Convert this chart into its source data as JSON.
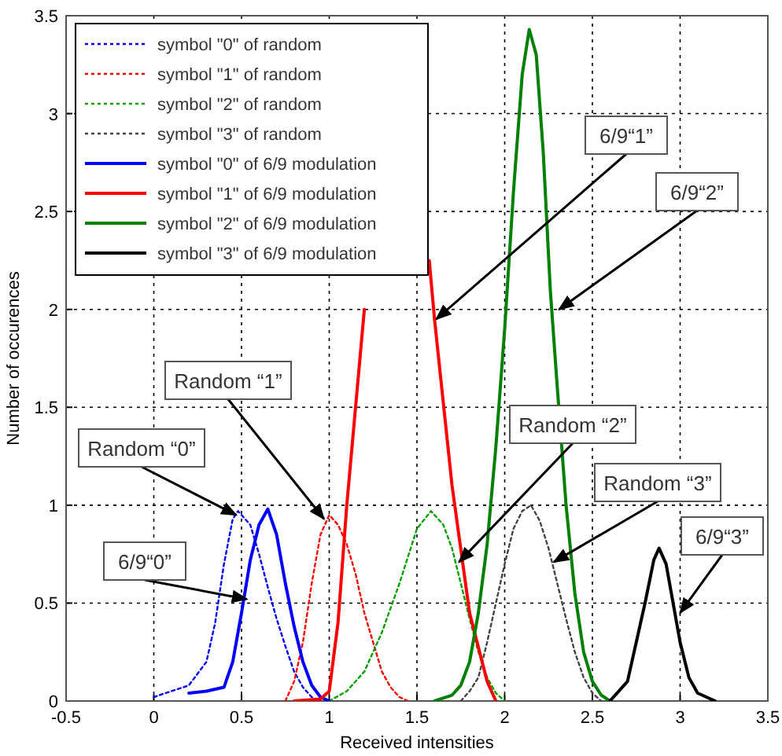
{
  "chart_data": {
    "type": "line",
    "xlabel": "Received intensities",
    "ylabel": "Number of occurences",
    "xlim": [
      -0.5,
      3.5
    ],
    "ylim": [
      0,
      3.5
    ],
    "xticks": [
      -0.5,
      0,
      0.5,
      1,
      1.5,
      2,
      2.5,
      3,
      3.5
    ],
    "yticks": [
      0,
      0.5,
      1,
      1.5,
      2,
      2.5,
      3,
      3.5
    ],
    "grid": true,
    "legend": "top left",
    "marker": "none",
    "series": [
      {
        "name": "symbol \"0\" of random",
        "color": "#0000ff",
        "line_style": "dotted",
        "x": [
          0,
          0.1,
          0.2,
          0.3,
          0.35,
          0.4,
          0.45,
          0.48,
          0.55,
          0.6,
          0.65,
          0.7,
          0.75,
          0.8,
          0.85,
          0.9,
          0.95
        ],
        "values": [
          0.02,
          0.05,
          0.08,
          0.2,
          0.4,
          0.7,
          0.93,
          0.97,
          0.9,
          0.75,
          0.58,
          0.42,
          0.28,
          0.15,
          0.07,
          0.02,
          0
        ]
      },
      {
        "name": "symbol \"1\" of random",
        "color": "#ff0000",
        "line_style": "dotted",
        "x": [
          0.75,
          0.8,
          0.85,
          0.9,
          0.95,
          1.0,
          1.05,
          1.1,
          1.15,
          1.2,
          1.25,
          1.3,
          1.35,
          1.4,
          1.45
        ],
        "values": [
          0,
          0.1,
          0.3,
          0.6,
          0.85,
          0.95,
          0.9,
          0.8,
          0.65,
          0.45,
          0.3,
          0.15,
          0.07,
          0.02,
          0
        ]
      },
      {
        "name": "symbol \"2\" of random",
        "color": "#00a000",
        "line_style": "dotted",
        "x": [
          1.0,
          1.1,
          1.2,
          1.3,
          1.4,
          1.5,
          1.58,
          1.65,
          1.7,
          1.75,
          1.8,
          1.85,
          1.9,
          1.95,
          2.0
        ],
        "values": [
          0,
          0.05,
          0.15,
          0.35,
          0.6,
          0.88,
          0.97,
          0.9,
          0.78,
          0.6,
          0.42,
          0.25,
          0.12,
          0.04,
          0
        ]
      },
      {
        "name": "symbol \"3\" of random",
        "color": "#444444",
        "line_style": "dotted",
        "x": [
          1.75,
          1.8,
          1.85,
          1.9,
          1.95,
          2.0,
          2.05,
          2.1,
          2.15,
          2.2,
          2.25,
          2.3,
          2.35,
          2.4,
          2.45,
          2.5,
          2.55
        ],
        "values": [
          0,
          0.05,
          0.12,
          0.3,
          0.5,
          0.7,
          0.88,
          0.97,
          1.0,
          0.92,
          0.78,
          0.6,
          0.42,
          0.25,
          0.12,
          0.04,
          0
        ]
      },
      {
        "name": "symbol \"0\" of 6/9 modulation",
        "color": "#0000ff",
        "line_style": "solid",
        "x": [
          0.2,
          0.3,
          0.4,
          0.45,
          0.5,
          0.55,
          0.6,
          0.65,
          0.7,
          0.75,
          0.8,
          0.85,
          0.9,
          0.95,
          1.0
        ],
        "values": [
          0.04,
          0.05,
          0.07,
          0.2,
          0.45,
          0.72,
          0.9,
          0.98,
          0.85,
          0.6,
          0.38,
          0.2,
          0.08,
          0.02,
          0
        ]
      },
      {
        "name": "symbol \"1\" of 6/9 modulation",
        "color": "#ff0000",
        "line_style": "solid",
        "x": [
          0.8,
          0.95,
          1.0,
          1.05,
          1.1,
          1.2
        ],
        "values": [
          0,
          0.01,
          0.05,
          0.4,
          1.0,
          2.0
        ]
      },
      {
        "name": null,
        "color": "#ff0000",
        "line_style": "solid",
        "x": [
          1.57,
          1.6,
          1.7,
          1.8,
          1.9,
          1.95
        ],
        "values": [
          2.25,
          1.95,
          1.1,
          0.45,
          0.1,
          0
        ]
      },
      {
        "name": "symbol \"2\" of 6/9 modulation",
        "color": "#008000",
        "line_style": "solid",
        "x": [
          1.6,
          1.7,
          1.75,
          1.8,
          1.85,
          1.9,
          1.95,
          2.0,
          2.05,
          2.1,
          2.14,
          2.18,
          2.22,
          2.26,
          2.3,
          2.35,
          2.4,
          2.45,
          2.5,
          2.55,
          2.6
        ],
        "values": [
          0,
          0.03,
          0.08,
          0.2,
          0.45,
          0.8,
          1.3,
          1.9,
          2.6,
          3.2,
          3.43,
          3.3,
          2.8,
          2.1,
          1.6,
          1.0,
          0.55,
          0.25,
          0.1,
          0.03,
          0
        ]
      },
      {
        "name": "symbol \"3\" of 6/9 modulation",
        "color": "#000000",
        "line_style": "solid",
        "x": [
          2.6,
          2.7,
          2.75,
          2.8,
          2.85,
          2.88,
          2.92,
          2.95,
          3.0,
          3.05,
          3.1,
          3.2
        ],
        "values": [
          0,
          0.1,
          0.3,
          0.5,
          0.72,
          0.78,
          0.7,
          0.55,
          0.3,
          0.12,
          0.04,
          0
        ]
      }
    ],
    "annotations": [
      {
        "text": "Random “0”",
        "x": 0.47,
        "y": 0.95
      },
      {
        "text": "6/9“0”",
        "x": 0.53,
        "y": 0.52
      },
      {
        "text": "Random “1”",
        "x": 0.97,
        "y": 0.93
      },
      {
        "text": "6/9“1”",
        "x": 1.61,
        "y": 1.95
      },
      {
        "text": "6/9“2”",
        "x": 2.31,
        "y": 2.0
      },
      {
        "text": "Random “2”",
        "x": 1.74,
        "y": 0.71
      },
      {
        "text": "Random “3”",
        "x": 2.28,
        "y": 0.71
      },
      {
        "text": "6/9“3”",
        "x": 3.0,
        "y": 0.45
      }
    ]
  }
}
